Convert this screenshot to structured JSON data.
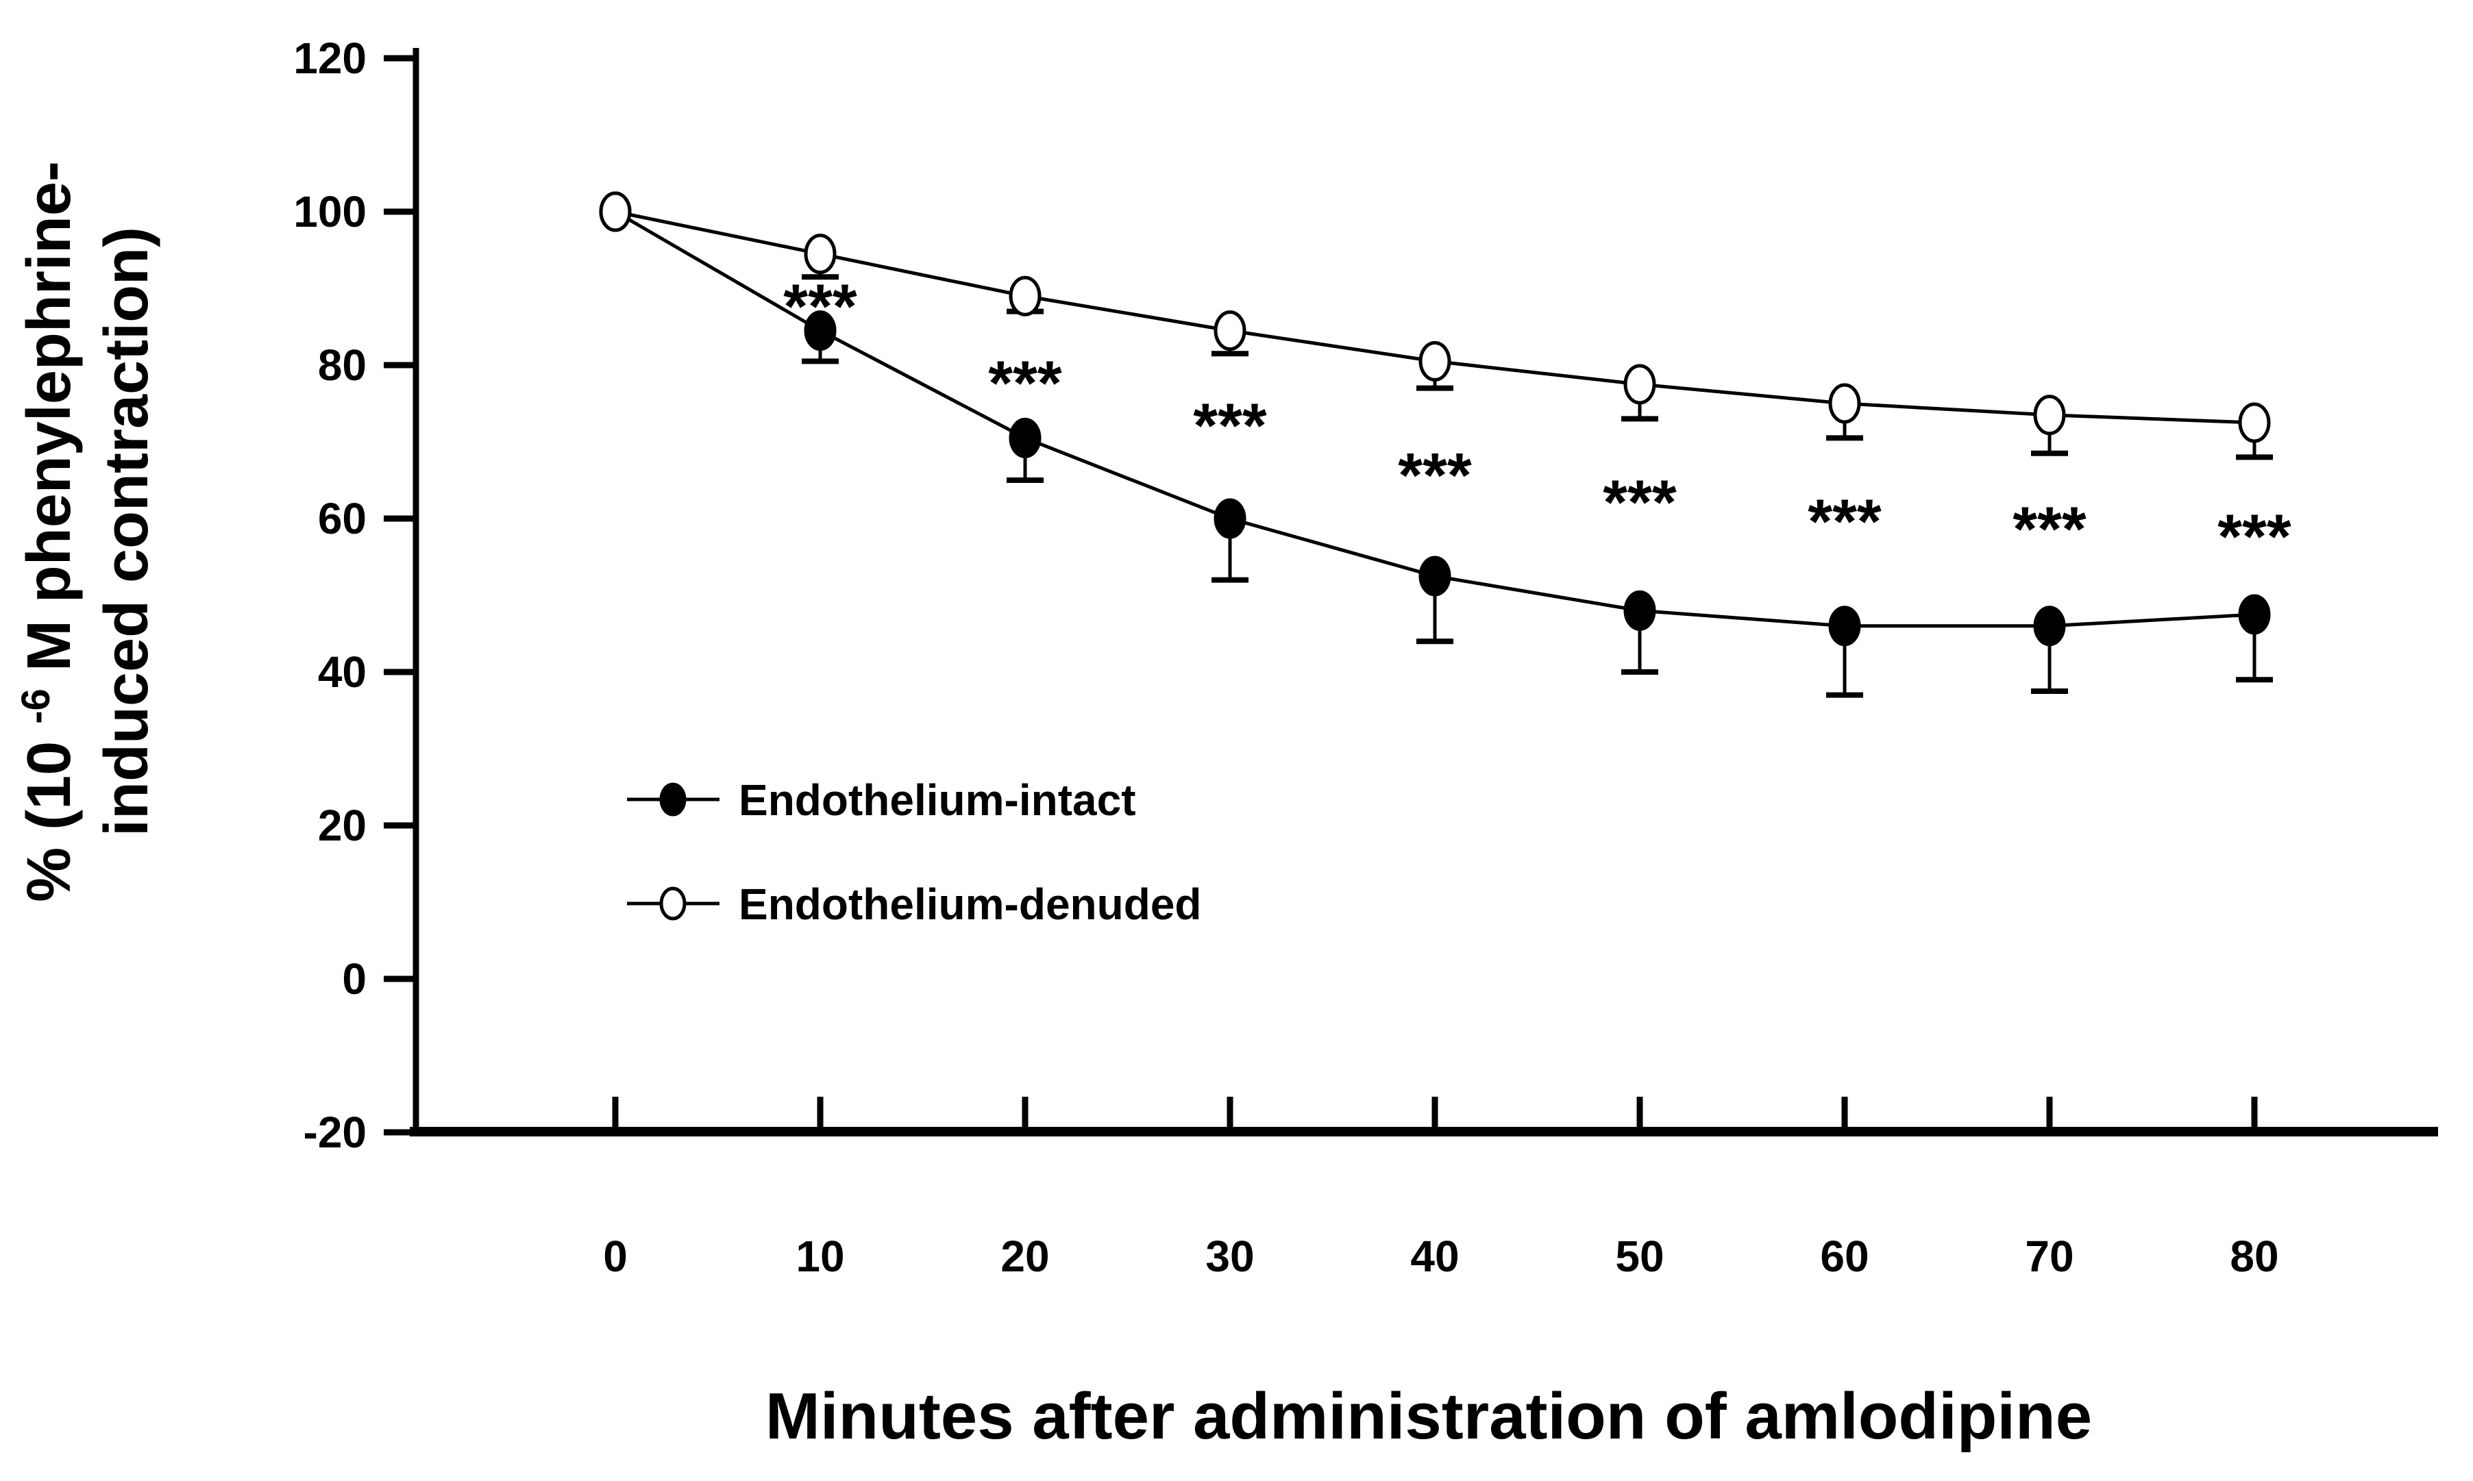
{
  "figure": {
    "background": "#ffffff",
    "ink": "#000000"
  },
  "chart_data": {
    "type": "line",
    "title": "",
    "xlabel": "Minutes after administration of amlodipine",
    "ylabel": "% (10⁻⁶ M phenylephrine-induced contraction)",
    "ylabel_parts": {
      "line1_pre": "% (10",
      "line1_sup": "-6",
      "line1_post": " M phenylephrine-",
      "line2": "induced contraction)"
    },
    "x": [
      0,
      10,
      20,
      30,
      40,
      50,
      60,
      70,
      80
    ],
    "xticks": [
      "0",
      "10",
      "20",
      "30",
      "40",
      "50",
      "60",
      "70",
      "80"
    ],
    "yticks": [
      "120",
      "100",
      "80",
      "60",
      "40",
      "20",
      "0",
      "-20"
    ],
    "ytick_values": [
      120,
      100,
      80,
      60,
      40,
      20,
      0,
      -20
    ],
    "xlim": [
      0,
      80
    ],
    "ylim": [
      -20,
      120
    ],
    "grid": false,
    "error_bars": "downward whiskers with caps",
    "legend_position": "inside-left, mid-height",
    "series": [
      {
        "name": "Endothelium-intact",
        "marker": "filled-circle",
        "line_color": "#000000",
        "values": [
          100,
          84.5,
          70.5,
          60,
          52.5,
          48,
          46,
          46,
          47.5
        ],
        "err_down": [
          0,
          4,
          5.5,
          8,
          8.5,
          8,
          9,
          8.5,
          8.5
        ]
      },
      {
        "name": "Endothelium-denuded",
        "marker": "open-circle",
        "line_color": "#000000",
        "values": [
          100,
          94.5,
          89,
          84.5,
          80.5,
          77.5,
          75,
          73.5,
          72.5
        ],
        "err_down": [
          0,
          3,
          2,
          3,
          3.5,
          4.5,
          4.5,
          5,
          4.5
        ]
      }
    ],
    "annotations": [
      {
        "text": "***",
        "x": 10,
        "y": 89
      },
      {
        "text": "***",
        "x": 20,
        "y": 79
      },
      {
        "text": "***",
        "x": 30,
        "y": 73.5
      },
      {
        "text": "***",
        "x": 40,
        "y": 67
      },
      {
        "text": "***",
        "x": 50,
        "y": 63.5
      },
      {
        "text": "***",
        "x": 60,
        "y": 61
      },
      {
        "text": "***",
        "x": 70,
        "y": 60
      },
      {
        "text": "***",
        "x": 80,
        "y": 59
      }
    ]
  }
}
